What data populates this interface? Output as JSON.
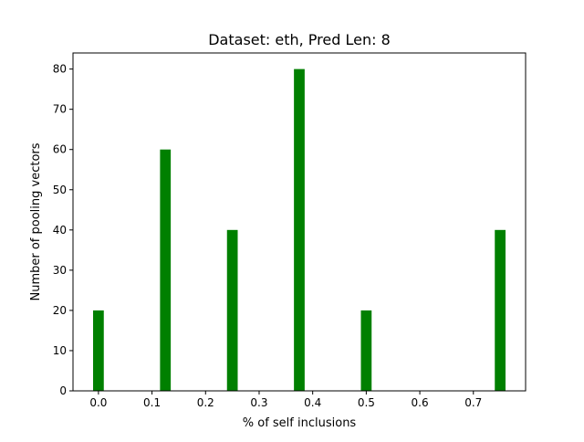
{
  "chart_data": {
    "type": "bar",
    "title": "Dataset: eth, Pred Len: 8",
    "xlabel": "% of self inclusions",
    "ylabel": "Number of pooling vectors",
    "x": [
      0.0,
      0.125,
      0.25,
      0.375,
      0.5,
      0.75
    ],
    "values": [
      20,
      60,
      40,
      80,
      20,
      40
    ],
    "bar_width": 0.02,
    "xlim": [
      -0.0475,
      0.7975
    ],
    "ylim": [
      0,
      84
    ],
    "xticks": [
      0.0,
      0.1,
      0.2,
      0.3,
      0.4,
      0.5,
      0.6,
      0.7
    ],
    "xtick_labels": [
      "0.0",
      "0.1",
      "0.2",
      "0.3",
      "0.4",
      "0.5",
      "0.6",
      "0.7"
    ],
    "yticks": [
      0,
      10,
      20,
      30,
      40,
      50,
      60,
      70,
      80
    ],
    "ytick_labels": [
      "0",
      "10",
      "20",
      "30",
      "40",
      "50",
      "60",
      "70",
      "80"
    ],
    "bar_color": "#008000",
    "grid": false,
    "legend": "none"
  }
}
